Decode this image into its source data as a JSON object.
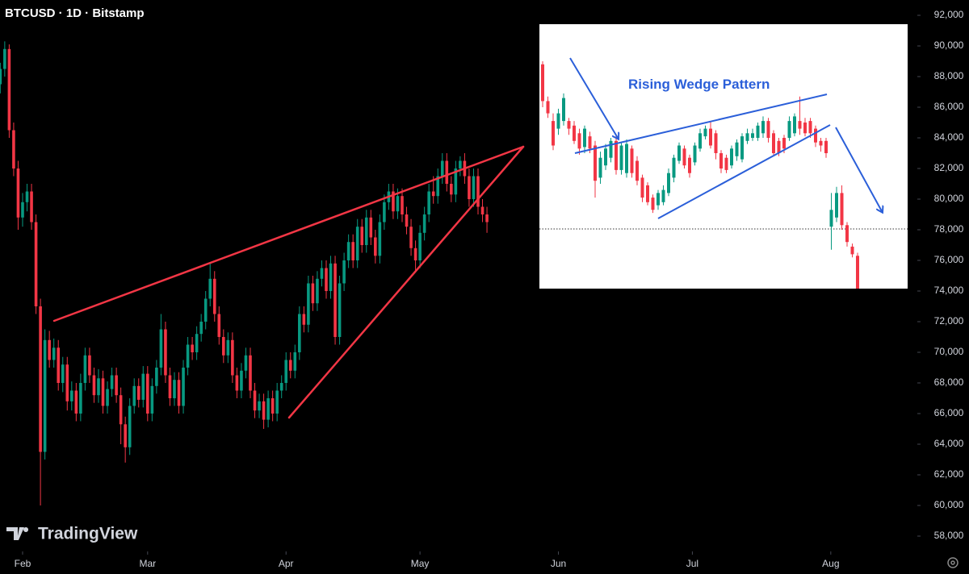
{
  "chart_data": [
    {
      "type": "candlestick",
      "title": "BTCUSD · 1D · Bitstamp",
      "up_color": "#089981",
      "down_color": "#f23645",
      "xlim": [
        -5.06,
        200.2
      ],
      "xticks": [
        {
          "value": 0,
          "label": "Feb"
        },
        {
          "value": 28,
          "label": "Mar"
        },
        {
          "value": 59,
          "label": "Apr"
        },
        {
          "value": 89,
          "label": "May"
        },
        {
          "value": 120,
          "label": "Jun"
        },
        {
          "value": 150,
          "label": "Jul"
        },
        {
          "value": 181,
          "label": "Aug"
        }
      ],
      "ylim": [
        57000,
        93000
      ],
      "yticks": [
        {
          "value": 92000,
          "label": "92,000"
        },
        {
          "value": 90000,
          "label": "90,000"
        },
        {
          "value": 88000,
          "label": "88,000"
        },
        {
          "value": 86000,
          "label": "86,000"
        },
        {
          "value": 84000,
          "label": "84,000"
        },
        {
          "value": 82000,
          "label": "82,000"
        },
        {
          "value": 80000,
          "label": "80,000"
        },
        {
          "value": 78000,
          "label": "78,000"
        },
        {
          "value": 76000,
          "label": "76,000"
        },
        {
          "value": 74000,
          "label": "74,000"
        },
        {
          "value": 72000,
          "label": "72,000"
        },
        {
          "value": 70000,
          "label": "70,000"
        },
        {
          "value": 68000,
          "label": "68,000"
        },
        {
          "value": 66000,
          "label": "66,000"
        },
        {
          "value": 64000,
          "label": "64,000"
        },
        {
          "value": 62000,
          "label": "62,000"
        },
        {
          "value": 60000,
          "label": "60,000"
        },
        {
          "value": 58000,
          "label": "58,000"
        }
      ],
      "x": [
        -5,
        -4,
        -3,
        -2,
        -1,
        0,
        1,
        2,
        3,
        4,
        5,
        6,
        7,
        8,
        9,
        10,
        11,
        12,
        13,
        14,
        15,
        16,
        17,
        18,
        19,
        20,
        21,
        22,
        23,
        24,
        25,
        26,
        27,
        28,
        29,
        30,
        31,
        32,
        33,
        34,
        35,
        36,
        37,
        38,
        39,
        40,
        41,
        42,
        43,
        44,
        45,
        46,
        47,
        48,
        49,
        50,
        51,
        52,
        53,
        54,
        55,
        56,
        57,
        58,
        59,
        60,
        61,
        62,
        63,
        64,
        65,
        66,
        67,
        68,
        69,
        70,
        71,
        72,
        73,
        74,
        75,
        76,
        77,
        78,
        79,
        80,
        81,
        82,
        83,
        84,
        85,
        86,
        87,
        88,
        89,
        90,
        91,
        92,
        93,
        94,
        95,
        96,
        97,
        98,
        99,
        100,
        101,
        102,
        103,
        104
      ],
      "ohlc": [
        [
          87500,
          88900,
          86900,
          88500
        ],
        [
          88500,
          90300,
          88000,
          89800
        ],
        [
          89800,
          90100,
          84000,
          84500
        ],
        [
          84500,
          85000,
          81500,
          82000
        ],
        [
          82000,
          82500,
          78000,
          78800
        ],
        [
          78800,
          80400,
          78200,
          79800
        ],
        [
          79800,
          81000,
          79200,
          80500
        ],
        [
          80500,
          81000,
          78000,
          78500
        ],
        [
          78500,
          79000,
          72500,
          73000
        ],
        [
          73000,
          73500,
          60000,
          63500
        ],
        [
          63500,
          71500,
          63000,
          70800
        ],
        [
          70800,
          71400,
          69000,
          69500
        ],
        [
          69500,
          70900,
          69000,
          70300
        ],
        [
          70300,
          70800,
          67500,
          68000
        ],
        [
          68000,
          69700,
          67400,
          69200
        ],
        [
          69200,
          69700,
          66200,
          66800
        ],
        [
          66800,
          68100,
          66200,
          67500
        ],
        [
          67500,
          68000,
          65500,
          66000
        ],
        [
          66000,
          68600,
          65500,
          68000
        ],
        [
          68000,
          70300,
          67500,
          69800
        ],
        [
          69800,
          70300,
          68000,
          68500
        ],
        [
          68500,
          69000,
          66700,
          67200
        ],
        [
          67200,
          68900,
          66700,
          68300
        ],
        [
          68300,
          68800,
          66000,
          66500
        ],
        [
          66500,
          68100,
          66000,
          67600
        ],
        [
          67600,
          69000,
          67100,
          68500
        ],
        [
          68500,
          69000,
          66700,
          67200
        ],
        [
          67200,
          67700,
          64000,
          65300
        ],
        [
          65300,
          65800,
          62800,
          63800
        ],
        [
          63800,
          67000,
          63300,
          66500
        ],
        [
          66500,
          68300,
          66000,
          67800
        ],
        [
          67800,
          68300,
          66400,
          66900
        ],
        [
          66900,
          69100,
          66400,
          68600
        ],
        [
          68600,
          69100,
          65500,
          66000
        ],
        [
          66000,
          68300,
          65500,
          67800
        ],
        [
          67800,
          69500,
          67300,
          69000
        ],
        [
          69000,
          72500,
          68500,
          71500
        ],
        [
          71500,
          72000,
          68000,
          68500
        ],
        [
          68500,
          69000,
          66500,
          67000
        ],
        [
          67000,
          68700,
          66500,
          68200
        ],
        [
          68200,
          68700,
          66000,
          66500
        ],
        [
          66500,
          69500,
          66000,
          69000
        ],
        [
          69000,
          71000,
          68500,
          70500
        ],
        [
          70500,
          71000,
          69500,
          70000
        ],
        [
          70000,
          71700,
          69500,
          71200
        ],
        [
          71200,
          72500,
          70700,
          72000
        ],
        [
          72000,
          74000,
          71500,
          73500
        ],
        [
          73500,
          75800,
          73000,
          74800
        ],
        [
          74800,
          75300,
          72000,
          72500
        ],
        [
          72500,
          73000,
          70500,
          71000
        ],
        [
          71000,
          71500,
          69300,
          69800
        ],
        [
          69800,
          71300,
          69300,
          70800
        ],
        [
          70800,
          71300,
          68000,
          68500
        ],
        [
          68500,
          69000,
          67000,
          67500
        ],
        [
          67500,
          69300,
          67000,
          68800
        ],
        [
          68800,
          70300,
          68300,
          69800
        ],
        [
          69800,
          70300,
          67000,
          67500
        ],
        [
          67500,
          68000,
          65700,
          66200
        ],
        [
          66200,
          67300,
          65700,
          66800
        ],
        [
          66800,
          67300,
          65000,
          65600
        ],
        [
          65600,
          67500,
          65100,
          67000
        ],
        [
          67000,
          67500,
          65500,
          66000
        ],
        [
          66000,
          68000,
          65500,
          67500
        ],
        [
          67500,
          68500,
          67000,
          68000
        ],
        [
          68000,
          70000,
          67500,
          69500
        ],
        [
          69500,
          70000,
          68300,
          68800
        ],
        [
          68800,
          70500,
          68300,
          70000
        ],
        [
          70000,
          73000,
          69500,
          72500
        ],
        [
          72500,
          73000,
          71300,
          71800
        ],
        [
          71800,
          75000,
          71300,
          74500
        ],
        [
          74500,
          75000,
          72700,
          73200
        ],
        [
          73200,
          75300,
          72700,
          74800
        ],
        [
          74800,
          76000,
          74300,
          75500
        ],
        [
          75500,
          76000,
          73500,
          74000
        ],
        [
          74000,
          76300,
          73500,
          75800
        ],
        [
          75800,
          76300,
          70500,
          71000
        ],
        [
          71000,
          75000,
          70500,
          74500
        ],
        [
          74500,
          76500,
          74000,
          76000
        ],
        [
          76000,
          77700,
          75500,
          77200
        ],
        [
          77200,
          77700,
          75500,
          76000
        ],
        [
          76000,
          78700,
          75500,
          78200
        ],
        [
          78200,
          78700,
          76500,
          77000
        ],
        [
          77000,
          79300,
          76500,
          78800
        ],
        [
          78800,
          79300,
          77000,
          77500
        ],
        [
          77500,
          78000,
          75800,
          76300
        ],
        [
          76300,
          79000,
          75800,
          78500
        ],
        [
          78500,
          80300,
          78000,
          79800
        ],
        [
          79800,
          81000,
          79300,
          80500
        ],
        [
          80500,
          81000,
          78700,
          79200
        ],
        [
          79200,
          80700,
          78700,
          80200
        ],
        [
          80200,
          80700,
          78500,
          79000
        ],
        [
          79000,
          79500,
          77700,
          78200
        ],
        [
          78200,
          78700,
          76300,
          76800
        ],
        [
          76800,
          77300,
          75300,
          76000
        ],
        [
          76000,
          78300,
          75500,
          77800
        ],
        [
          77800,
          79500,
          77300,
          79000
        ],
        [
          79000,
          81000,
          78500,
          80500
        ],
        [
          80500,
          81500,
          79700,
          80200
        ],
        [
          80200,
          82000,
          79700,
          81500
        ],
        [
          81500,
          83000,
          81000,
          82500
        ],
        [
          82500,
          83000,
          80500,
          81000
        ],
        [
          81000,
          81500,
          79800,
          80300
        ],
        [
          80300,
          82500,
          79800,
          82000
        ],
        [
          82000,
          82800,
          81500,
          82500
        ],
        [
          82500,
          83000,
          81000,
          81500
        ],
        [
          81500,
          82000,
          79500,
          80000
        ],
        [
          80000,
          82000,
          79500,
          81500
        ],
        [
          81500,
          82000,
          79000,
          79500
        ],
        [
          79500,
          80000,
          78500,
          79000
        ],
        [
          79000,
          79500,
          77800,
          78500
        ]
      ]
    },
    {
      "type": "candlestick",
      "title": "Rising Wedge Pattern",
      "up_color": "#089981",
      "down_color": "#f23645",
      "ylim": [
        57000,
        93000
      ],
      "ohlc": [
        [
          88800,
          89000,
          86000,
          86400
        ],
        [
          86400,
          86700,
          85300,
          85600
        ],
        [
          85100,
          85600,
          83200,
          83500
        ],
        [
          84600,
          85900,
          84200,
          85600
        ],
        [
          85100,
          86900,
          84800,
          86600
        ],
        [
          85100,
          85300,
          84200,
          84600
        ],
        [
          84800,
          85100,
          83600,
          83800
        ],
        [
          84300,
          84600,
          82900,
          83300
        ],
        [
          83400,
          84800,
          83000,
          84600
        ],
        [
          84100,
          84400,
          83000,
          83300
        ],
        [
          83500,
          83800,
          80100,
          81200
        ],
        [
          81400,
          83100,
          81000,
          82700
        ],
        [
          82200,
          83600,
          81900,
          83300
        ],
        [
          82700,
          84000,
          82400,
          83800
        ],
        [
          83800,
          84100,
          81600,
          81900
        ],
        [
          81900,
          83700,
          81600,
          83500
        ],
        [
          81700,
          83900,
          81400,
          83600
        ],
        [
          83300,
          83500,
          81400,
          81700
        ],
        [
          82500,
          82800,
          80900,
          81200
        ],
        [
          81400,
          81600,
          79800,
          80100
        ],
        [
          80900,
          81100,
          79600,
          79800
        ],
        [
          80100,
          80300,
          79100,
          79300
        ],
        [
          79600,
          80600,
          79300,
          80400
        ],
        [
          79800,
          80900,
          79600,
          80600
        ],
        [
          80400,
          82000,
          80200,
          81700
        ],
        [
          81400,
          82900,
          81100,
          82700
        ],
        [
          82500,
          83700,
          82300,
          83500
        ],
        [
          83300,
          83500,
          82000,
          82200
        ],
        [
          82700,
          82900,
          81400,
          81700
        ],
        [
          82400,
          83700,
          82200,
          83500
        ],
        [
          83300,
          84600,
          83100,
          84300
        ],
        [
          84100,
          84800,
          83900,
          84600
        ],
        [
          84600,
          85100,
          83300,
          83500
        ],
        [
          84300,
          84500,
          82600,
          83000
        ],
        [
          83000,
          83200,
          81700,
          82000
        ],
        [
          82700,
          82900,
          81700,
          81900
        ],
        [
          82200,
          83500,
          82000,
          83300
        ],
        [
          82800,
          83900,
          82500,
          83700
        ],
        [
          82600,
          84300,
          82400,
          84100
        ],
        [
          83800,
          84600,
          83600,
          84300
        ],
        [
          84000,
          84600,
          83800,
          84300
        ],
        [
          84000,
          85000,
          83800,
          84800
        ],
        [
          84300,
          85400,
          84000,
          85100
        ],
        [
          85100,
          85300,
          83700,
          84000
        ],
        [
          84300,
          84500,
          82800,
          83000
        ],
        [
          83800,
          84000,
          82800,
          83000
        ],
        [
          84000,
          84200,
          83000,
          83300
        ],
        [
          84000,
          85400,
          83800,
          85100
        ],
        [
          84300,
          85600,
          84100,
          85400
        ],
        [
          85100,
          86700,
          84200,
          84600
        ],
        [
          85000,
          85300,
          84100,
          84300
        ],
        [
          85100,
          85300,
          84000,
          84300
        ],
        [
          84600,
          84800,
          83400,
          83700
        ],
        [
          83800,
          84000,
          83100,
          83500
        ],
        [
          83800,
          84000,
          82700,
          83000
        ],
        [
          78200,
          80400,
          76700,
          79300
        ],
        [
          78800,
          80800,
          78500,
          80400
        ],
        [
          80400,
          80900,
          78000,
          78300
        ],
        [
          78300,
          78500,
          76900,
          77200
        ],
        [
          76900,
          77100,
          76200,
          76400
        ],
        [
          76300,
          76500,
          74000,
          74100
        ]
      ]
    }
  ],
  "watermark": "TradingView"
}
